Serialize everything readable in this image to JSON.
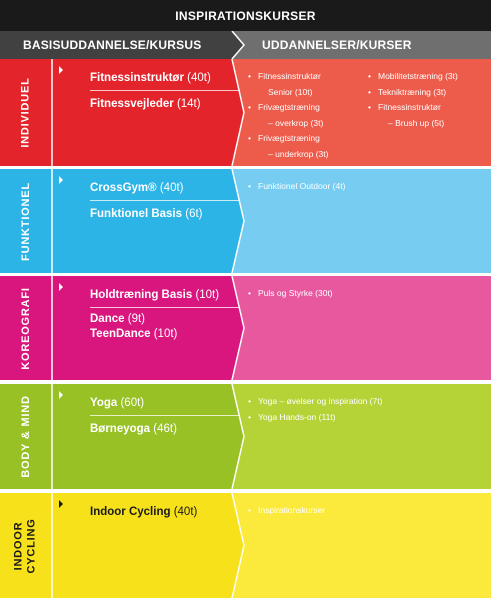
{
  "title": "INSPIRATIONSKURSER",
  "header": {
    "left": "BASISUDDANNELSE/KURSUS",
    "right": "UDDANNELSER/KURSER"
  },
  "rows": [
    {
      "label": "INDIVIDUEL",
      "courses": [
        {
          "name": "Fitnessinstruktør",
          "hours": "(40t)"
        },
        {
          "name": "Fitnessvejleder",
          "hours": "(14t)"
        }
      ],
      "items_col1": [
        "Fitnessinstruktør",
        "Senior (10t)",
        "Frivægtstræning",
        "– overkrop (3t)",
        "Frivægtstræning",
        "– underkrop (3t)"
      ],
      "items_col2": [
        "Mobilitetstræning (3t)",
        "Tekniktræning (3t)",
        "Fitnessinstruktør",
        "– Brush up (5t)"
      ]
    },
    {
      "label": "FUNKTIONEL",
      "courses": [
        {
          "name": "CrossGym®",
          "hours": "(40t)"
        },
        {
          "name": "Funktionel Basis",
          "hours": "(6t)"
        }
      ],
      "items": [
        "Funktionel Outdoor (4t)"
      ]
    },
    {
      "label": "KOREOGRAFI",
      "courses": [
        {
          "name": "Holdtræning Basis",
          "hours": "(10t)"
        },
        {
          "name": "Dance",
          "hours": "(9t)"
        },
        {
          "name": "TeenDance",
          "hours": "(10t)"
        }
      ],
      "items": [
        "Puls og Styrke (30t)"
      ]
    },
    {
      "label": "BODY & MIND",
      "courses": [
        {
          "name": "Yoga",
          "hours": "(60t)"
        },
        {
          "name": "Børneyoga",
          "hours": "(46t)"
        }
      ],
      "items": [
        "Yoga – øvelser og inspiration (7t)",
        "Yoga Hands-on (11t)"
      ]
    },
    {
      "label_line1": "INDOOR",
      "label_line2": "CYCLING",
      "courses": [
        {
          "name": "Indoor Cycling",
          "hours": "(40t)"
        }
      ],
      "items": [
        "Inspirationskurser"
      ]
    }
  ],
  "colors": {
    "title_bg": "#1a1a1a",
    "header_left": "#414141",
    "header_right": "#6f6f6f",
    "individuel": [
      "#e3242b",
      "#ed5b4b"
    ],
    "funktionel": [
      "#2cb4e6",
      "#76ccf1"
    ],
    "koreografi": [
      "#d9167e",
      "#e7589f"
    ],
    "body_mind": [
      "#97c125",
      "#b5d336"
    ],
    "indoor_cycling": [
      "#f7e11a",
      "#fbe93c"
    ]
  }
}
